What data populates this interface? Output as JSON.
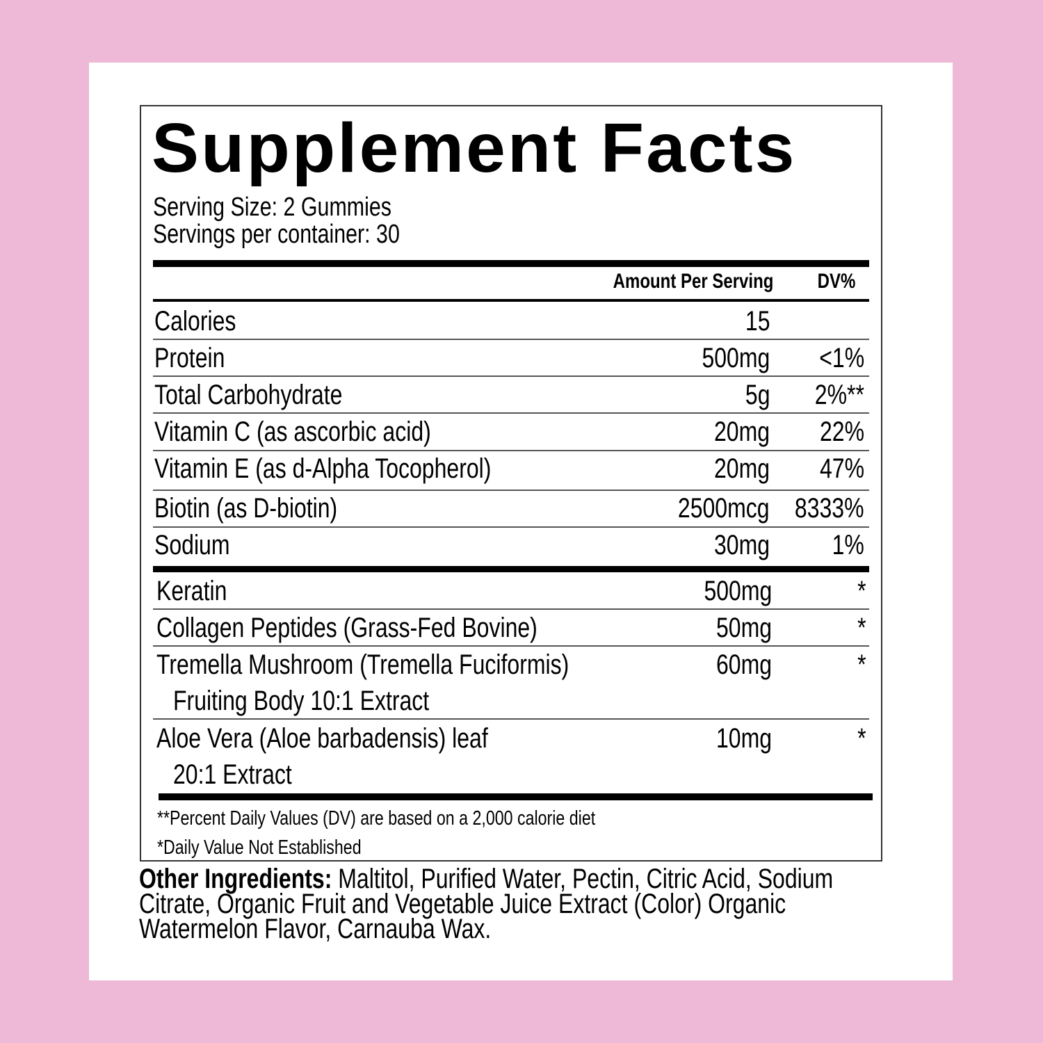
{
  "colors": {
    "background": "#EDB9D6",
    "panel": "#FFFFFF",
    "text": "#000000"
  },
  "label": {
    "title": "Supplement Facts",
    "serving_size": "Serving Size: 2 Gummies",
    "servings_per_container": "Servings per container: 30",
    "header_amount": "Amount Per Serving",
    "header_dv": "DV%",
    "nutrients": [
      {
        "name": "Calories",
        "amount": "15",
        "dv": ""
      },
      {
        "name": "Protein",
        "amount": "500mg",
        "dv": "<1%"
      },
      {
        "name": "Total Carbohydrate",
        "amount": "5g",
        "dv": "2%**"
      },
      {
        "name": "Vitamin C (as ascorbic acid)",
        "amount": "20mg",
        "dv": "22%"
      },
      {
        "name": "Vitamin E (as d-Alpha Tocopherol)",
        "amount": "20mg",
        "dv": "47%"
      },
      {
        "name": "Biotin (as D-biotin)",
        "amount": "2500mcg",
        "dv": "8333%"
      },
      {
        "name": "Sodium",
        "amount": "30mg",
        "dv": "1%"
      }
    ],
    "other_nutrients": [
      {
        "name": "Keratin",
        "sub": "",
        "amount": "500mg",
        "dv": "*"
      },
      {
        "name": "Collagen Peptides (Grass-Fed Bovine)",
        "sub": "",
        "amount": "50mg",
        "dv": "*"
      },
      {
        "name": "Tremella Mushroom (Tremella Fuciformis)",
        "sub": "Fruiting Body 10:1 Extract",
        "amount": "60mg",
        "dv": "*"
      },
      {
        "name": "Aloe Vera (Aloe barbadensis) leaf",
        "sub": "20:1 Extract",
        "amount": "10mg",
        "dv": "*"
      }
    ],
    "footnote_dv": "**Percent Daily Values (DV) are based on a 2,000 calorie diet",
    "footnote_not_established": "*Daily Value Not Established"
  },
  "other_ingredients": {
    "label": "Other Ingredients:",
    "text": " Maltitol, Purified Water, Pectin, Citric Acid, Sodium Citrate, Organic Fruit and Vegetable Juice Extract (Color) Organic Watermelon Flavor, Carnauba Wax."
  }
}
